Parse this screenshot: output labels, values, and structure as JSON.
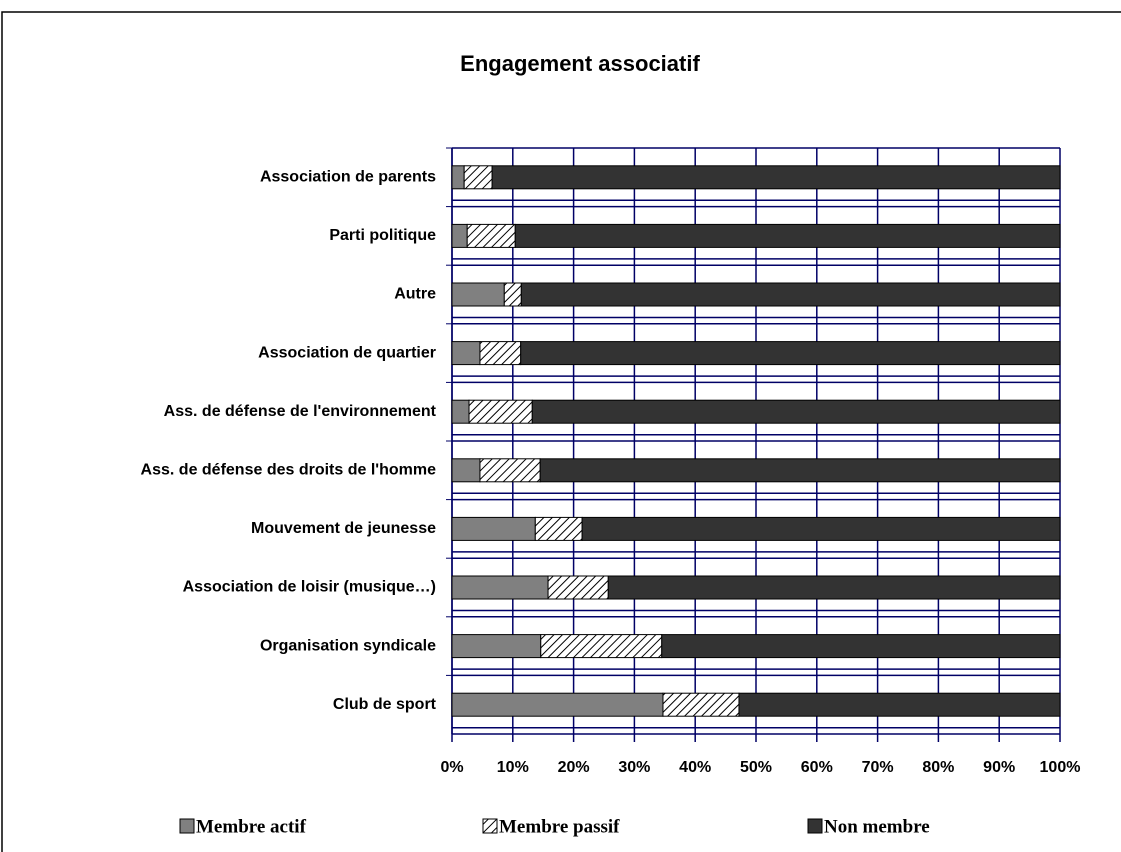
{
  "chart_data": {
    "type": "stacked-barh",
    "title": "Engagement associatif",
    "categories": [
      "Association de parents",
      "Parti politique",
      "Autre",
      "Association de quartier",
      "Ass. de défense de l'environnement",
      "Ass. de défense des droits de l'homme",
      "Mouvement de jeunesse",
      "Association de loisir (musique…)",
      "Organisation syndicale",
      "Club de sport"
    ],
    "series": [
      {
        "name": "Membre actif",
        "color": "#808080",
        "values": [
          2.0,
          2.5,
          8.6,
          4.6,
          2.8,
          4.6,
          13.7,
          15.8,
          14.6,
          34.7
        ]
      },
      {
        "name": "Membre passif",
        "color": "#ffffff",
        "pattern": "hatch",
        "values": [
          4.6,
          7.9,
          2.8,
          6.7,
          10.4,
          9.9,
          7.7,
          9.9,
          19.9,
          12.5
        ]
      },
      {
        "name": "Non membre",
        "color": "#333333",
        "values": [
          93.4,
          89.6,
          88.6,
          88.7,
          86.8,
          85.5,
          78.6,
          74.3,
          65.5,
          52.8
        ]
      }
    ],
    "xlim": [
      0,
      100
    ],
    "xticks": [
      {
        "value": 0,
        "label": "0%"
      },
      {
        "value": 10,
        "label": "10%"
      },
      {
        "value": 20,
        "label": "20%"
      },
      {
        "value": 30,
        "label": "30%"
      },
      {
        "value": 40,
        "label": "40%"
      },
      {
        "value": 50,
        "label": "50%"
      },
      {
        "value": 60,
        "label": "60%"
      },
      {
        "value": 70,
        "label": "70%"
      },
      {
        "value": 80,
        "label": "80%"
      },
      {
        "value": 90,
        "label": "90%"
      },
      {
        "value": 100,
        "label": "100%"
      }
    ],
    "grid": true,
    "legend": "bottom"
  }
}
